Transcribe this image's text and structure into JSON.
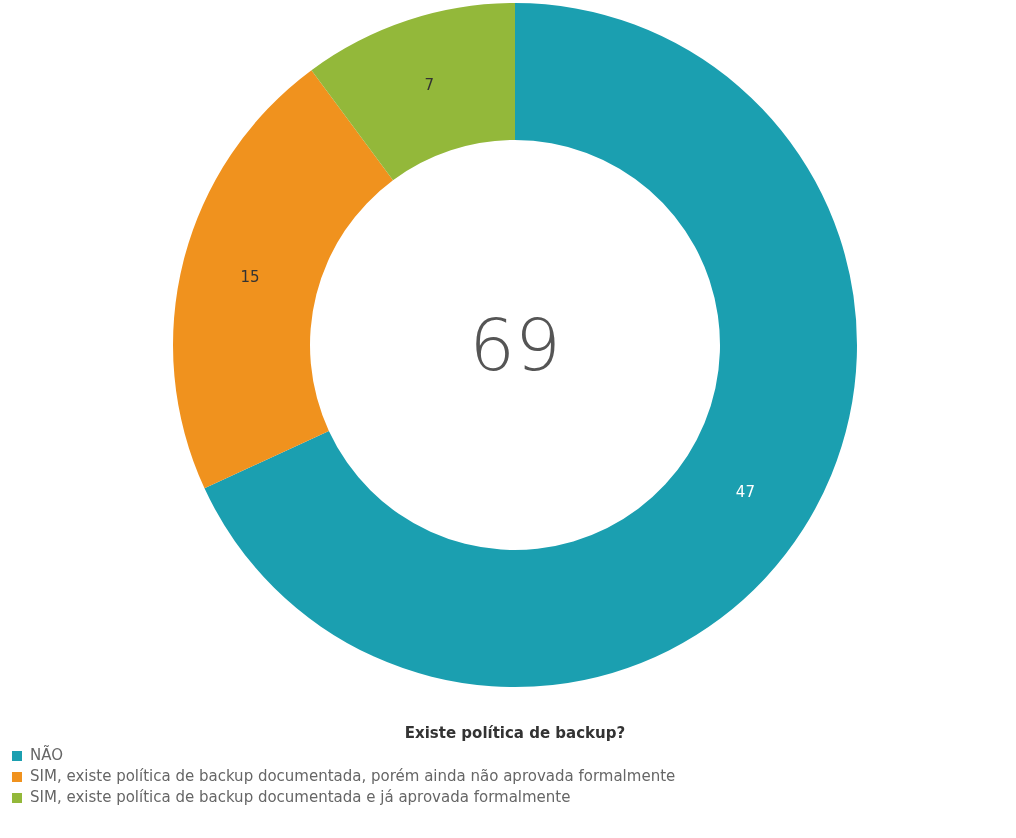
{
  "chart_data": {
    "type": "donut",
    "legend_title": "Existe política de backup?",
    "categories": [
      "NÃO",
      "SIM, existe política de backup documentada, porém ainda não aprovada formalmente",
      "SIM, existe política de backup documentada e já aprovada formalmente"
    ],
    "values": [
      47,
      15,
      7
    ],
    "colors": [
      "#1b9fb0",
      "#f0921e",
      "#93b83a"
    ],
    "annotations": [
      "69"
    ],
    "data_labels": true,
    "legend": "bottom"
  }
}
